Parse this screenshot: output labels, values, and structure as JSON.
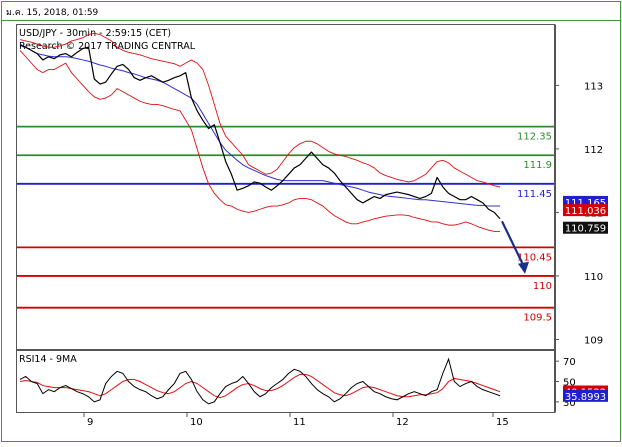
{
  "header": {
    "date_label": "ม.ค. 15, 2018, 01:59"
  },
  "colors": {
    "frame_green": "#3c9a3c",
    "support_resistance_green": "#2e8b2e",
    "pivot_blue": "#1f1fd0",
    "target_red": "#d40000",
    "price_black": "#000000",
    "bollinger_red": "#e01010",
    "ma_blue": "#3030d0",
    "rsi_black": "#000000",
    "rsi_ma_red": "#e01010",
    "arrow_navy": "#1a2f8a",
    "badge_blue": "#1f1fd0",
    "badge_red": "#d40000",
    "badge_black": "#111111"
  },
  "chart_data": [
    {
      "type": "line",
      "title": "USD/JPY - 30min - 2:59:15 (CET)",
      "subtitle": "Research © 2017 TRADING CENTRAL",
      "x_ticks": [
        "9",
        "10",
        "11",
        "12",
        "15"
      ],
      "y_ticks": [
        109,
        110,
        111,
        112,
        113
      ],
      "ylim": [
        108.85,
        113.95
      ],
      "grid": false,
      "levels": [
        {
          "value": 112.35,
          "label": "112.35",
          "role": "resistance"
        },
        {
          "value": 111.9,
          "label": "111.9",
          "role": "resistance"
        },
        {
          "value": 111.45,
          "label": "111.45",
          "role": "pivot"
        },
        {
          "value": 110.45,
          "label": "110.45",
          "role": "target"
        },
        {
          "value": 110,
          "label": "110",
          "role": "target"
        },
        {
          "value": 109.5,
          "label": "109.5",
          "role": "target"
        }
      ],
      "badges": [
        {
          "label": "111.165",
          "value": 111.165,
          "style": "blue"
        },
        {
          "label": "111.036",
          "value": 111.036,
          "style": "red"
        },
        {
          "label": "110.759",
          "value": 110.759,
          "style": "black"
        }
      ],
      "forecast_arrow": {
        "from": 110.86,
        "to": 110.05
      },
      "series": [
        {
          "kind": "price",
          "values": [
            113.63,
            113.6,
            113.55,
            113.5,
            113.4,
            113.45,
            113.42,
            113.48,
            113.5,
            113.45,
            113.52,
            113.58,
            113.6,
            113.1,
            113.02,
            113.05,
            113.18,
            113.3,
            113.33,
            113.25,
            113.12,
            113.08,
            113.12,
            113.15,
            113.1,
            113.05,
            113.08,
            113.12,
            113.15,
            113.2,
            112.8,
            112.6,
            112.45,
            112.32,
            112.38,
            112.1,
            111.8,
            111.6,
            111.35,
            111.38,
            111.42,
            111.48,
            111.46,
            111.4,
            111.35,
            111.42,
            111.5,
            111.6,
            111.7,
            111.75,
            111.85,
            111.95,
            111.85,
            111.75,
            111.7,
            111.62,
            111.5,
            111.4,
            111.3,
            111.2,
            111.15,
            111.2,
            111.25,
            111.22,
            111.28,
            111.3,
            111.32,
            111.3,
            111.28,
            111.25,
            111.22,
            111.25,
            111.3,
            111.55,
            111.4,
            111.3,
            111.25,
            111.2,
            111.2,
            111.25,
            111.2,
            111.15,
            111.05,
            111.0,
            110.9
          ]
        },
        {
          "kind": "moving_average",
          "values": [
            113.65,
            113.6,
            113.55,
            113.5,
            113.48,
            113.46,
            113.45,
            113.45,
            113.45,
            113.44,
            113.42,
            113.4,
            113.38,
            113.35,
            113.32,
            113.3,
            113.27,
            113.25,
            113.23,
            113.2,
            113.18,
            113.15,
            113.12,
            113.1,
            113.08,
            113.05,
            113.0,
            112.95,
            112.9,
            112.85,
            112.8,
            112.7,
            112.55,
            112.4,
            112.25,
            112.1,
            111.98,
            111.9,
            111.82,
            111.75,
            111.7,
            111.66,
            111.62,
            111.58,
            111.55,
            111.52,
            111.5,
            111.5,
            111.5,
            111.5,
            111.5,
            111.5,
            111.5,
            111.5,
            111.48,
            111.46,
            111.44,
            111.42,
            111.4,
            111.38,
            111.35,
            111.32,
            111.3,
            111.28,
            111.26,
            111.25,
            111.24,
            111.23,
            111.22,
            111.21,
            111.2,
            111.2,
            111.19,
            111.18,
            111.17,
            111.16,
            111.15,
            111.14,
            111.13,
            111.12,
            111.11,
            111.11,
            111.1,
            111.1,
            111.1
          ]
        },
        {
          "kind": "bollinger_upper",
          "values": [
            113.72,
            113.7,
            113.68,
            113.65,
            113.62,
            113.6,
            113.6,
            113.62,
            113.65,
            113.7,
            113.72,
            113.75,
            113.8,
            113.82,
            113.8,
            113.75,
            113.7,
            113.6,
            113.55,
            113.52,
            113.5,
            113.48,
            113.45,
            113.42,
            113.4,
            113.38,
            113.36,
            113.34,
            113.3,
            113.35,
            113.4,
            113.35,
            113.25,
            113.0,
            112.7,
            112.4,
            112.2,
            112.1,
            112.0,
            111.9,
            111.75,
            111.7,
            111.65,
            111.6,
            111.62,
            111.68,
            111.8,
            111.92,
            112.02,
            112.08,
            112.12,
            112.12,
            112.08,
            112.02,
            111.96,
            111.92,
            111.9,
            111.88,
            111.85,
            111.82,
            111.78,
            111.75,
            111.7,
            111.62,
            111.58,
            111.55,
            111.52,
            111.5,
            111.48,
            111.5,
            111.55,
            111.6,
            111.7,
            111.8,
            111.82,
            111.78,
            111.7,
            111.65,
            111.6,
            111.55,
            111.5,
            111.48,
            111.45,
            111.42,
            111.4
          ]
        },
        {
          "kind": "bollinger_lower",
          "values": [
            113.55,
            113.45,
            113.35,
            113.25,
            113.2,
            113.25,
            113.25,
            113.3,
            113.35,
            113.2,
            113.1,
            113.0,
            112.9,
            112.82,
            112.78,
            112.8,
            112.85,
            112.95,
            112.9,
            112.85,
            112.8,
            112.75,
            112.72,
            112.7,
            112.7,
            112.68,
            112.65,
            112.62,
            112.6,
            112.45,
            112.3,
            112.0,
            111.7,
            111.45,
            111.3,
            111.2,
            111.12,
            111.1,
            111.05,
            111.02,
            111.0,
            111.02,
            111.05,
            111.08,
            111.1,
            111.1,
            111.12,
            111.15,
            111.2,
            111.22,
            111.22,
            111.2,
            111.15,
            111.1,
            111.02,
            110.95,
            110.9,
            110.85,
            110.82,
            110.82,
            110.85,
            110.87,
            110.9,
            110.92,
            110.94,
            110.95,
            110.96,
            110.96,
            110.95,
            110.92,
            110.9,
            110.88,
            110.85,
            110.85,
            110.82,
            110.8,
            110.8,
            110.82,
            110.85,
            110.82,
            110.78,
            110.75,
            110.72,
            110.7,
            110.7
          ]
        }
      ]
    },
    {
      "type": "line",
      "title": "RSI14 - 9MA",
      "y_ticks": [
        30,
        50,
        70
      ],
      "ylim": [
        20,
        80
      ],
      "badges": [
        {
          "label": "40.1522",
          "value": 40.1522,
          "style": "red"
        },
        {
          "label": "35.8993",
          "value": 35.8993,
          "style": "blue"
        }
      ],
      "series": [
        {
          "kind": "rsi",
          "values": [
            52,
            55,
            50,
            48,
            38,
            42,
            40,
            44,
            46,
            43,
            40,
            38,
            35,
            30,
            32,
            48,
            55,
            60,
            58,
            50,
            45,
            42,
            40,
            36,
            33,
            35,
            42,
            48,
            58,
            60,
            52,
            40,
            32,
            28,
            30,
            38,
            45,
            48,
            50,
            55,
            48,
            40,
            35,
            38,
            44,
            48,
            52,
            58,
            62,
            60,
            55,
            48,
            42,
            38,
            35,
            30,
            33,
            38,
            44,
            48,
            50,
            45,
            40,
            38,
            35,
            33,
            32,
            35,
            38,
            40,
            38,
            36,
            40,
            42,
            58,
            72,
            50,
            45,
            48,
            50,
            45,
            42,
            40,
            38,
            36
          ]
        },
        {
          "kind": "rsi_ma",
          "values": [
            50,
            51,
            50,
            49,
            46,
            45,
            44,
            44,
            44,
            43,
            42,
            41,
            40,
            38,
            36,
            38,
            42,
            46,
            50,
            52,
            52,
            50,
            47,
            44,
            41,
            39,
            38,
            40,
            44,
            48,
            50,
            48,
            44,
            40,
            36,
            34,
            36,
            40,
            44,
            47,
            48,
            46,
            43,
            41,
            41,
            43,
            46,
            50,
            54,
            57,
            57,
            55,
            51,
            47,
            43,
            39,
            37,
            36,
            38,
            41,
            44,
            45,
            44,
            42,
            40,
            38,
            36,
            35,
            35,
            36,
            37,
            37,
            38,
            39,
            43,
            50,
            53,
            52,
            51,
            50,
            48,
            46,
            44,
            42,
            40
          ]
        }
      ]
    }
  ]
}
